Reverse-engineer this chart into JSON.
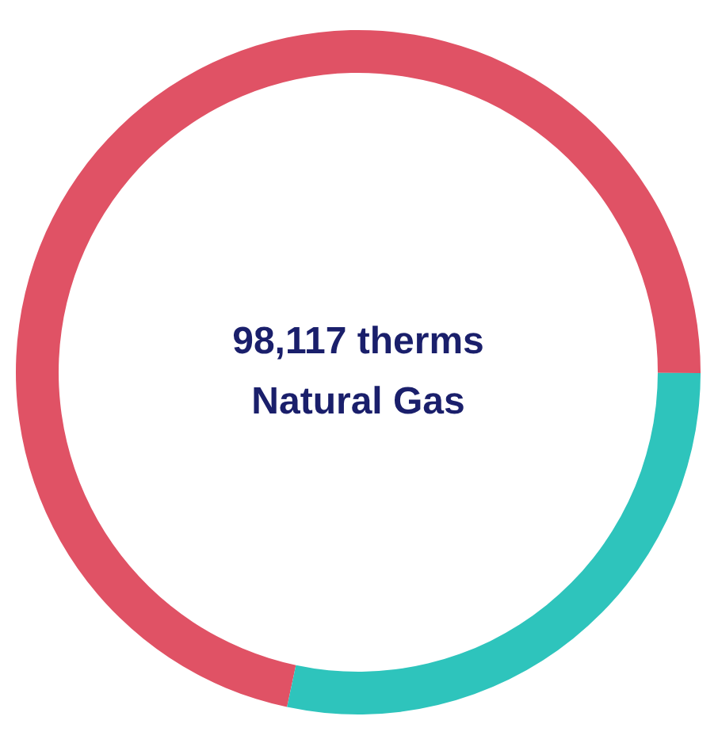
{
  "chart_data": {
    "type": "donut",
    "title": "98,117 therms",
    "subtitle": "Natural Gas",
    "categories": [
      null,
      null
    ],
    "values": [
      71.7,
      28.3
    ],
    "colors": [
      "#e05265",
      "#2ec4bc"
    ]
  }
}
